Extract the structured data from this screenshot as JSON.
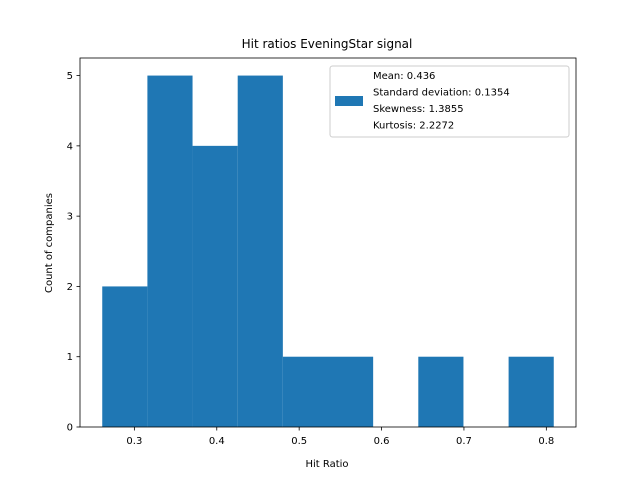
{
  "chart_data": {
    "type": "bar",
    "title": "Hit ratios EveningStar signal",
    "xlabel": "Hit Ratio",
    "ylabel": "Count of companies",
    "xlim": [
      0.234,
      0.836
    ],
    "ylim": [
      0,
      5.25
    ],
    "xticks": [
      0.3,
      0.4,
      0.5,
      0.6,
      0.7,
      0.8
    ],
    "xtick_labels": [
      "0.3",
      "0.4",
      "0.5",
      "0.6",
      "0.7",
      "0.8"
    ],
    "yticks": [
      0,
      1,
      2,
      3,
      4,
      5
    ],
    "ytick_labels": [
      "0",
      "1",
      "2",
      "3",
      "4",
      "5"
    ],
    "grid": false,
    "bar_color": "#1f77b4",
    "bins": [
      {
        "x0": 0.261,
        "x1": 0.3158,
        "count": 2
      },
      {
        "x0": 0.3158,
        "x1": 0.3706,
        "count": 5
      },
      {
        "x0": 0.3706,
        "x1": 0.4254,
        "count": 4
      },
      {
        "x0": 0.4254,
        "x1": 0.4802,
        "count": 5
      },
      {
        "x0": 0.4802,
        "x1": 0.535,
        "count": 1
      },
      {
        "x0": 0.535,
        "x1": 0.5898,
        "count": 1
      },
      {
        "x0": 0.5898,
        "x1": 0.6446,
        "count": 0
      },
      {
        "x0": 0.6446,
        "x1": 0.6994,
        "count": 1
      },
      {
        "x0": 0.6994,
        "x1": 0.7542,
        "count": 0
      },
      {
        "x0": 0.7542,
        "x1": 0.809,
        "count": 1
      }
    ],
    "legend": {
      "placement": "top-right",
      "lines": [
        "Mean: 0.436",
        "Standard deviation: 0.1354",
        "Skewness: 1.3855",
        "Kurtosis: 2.2272"
      ]
    }
  }
}
